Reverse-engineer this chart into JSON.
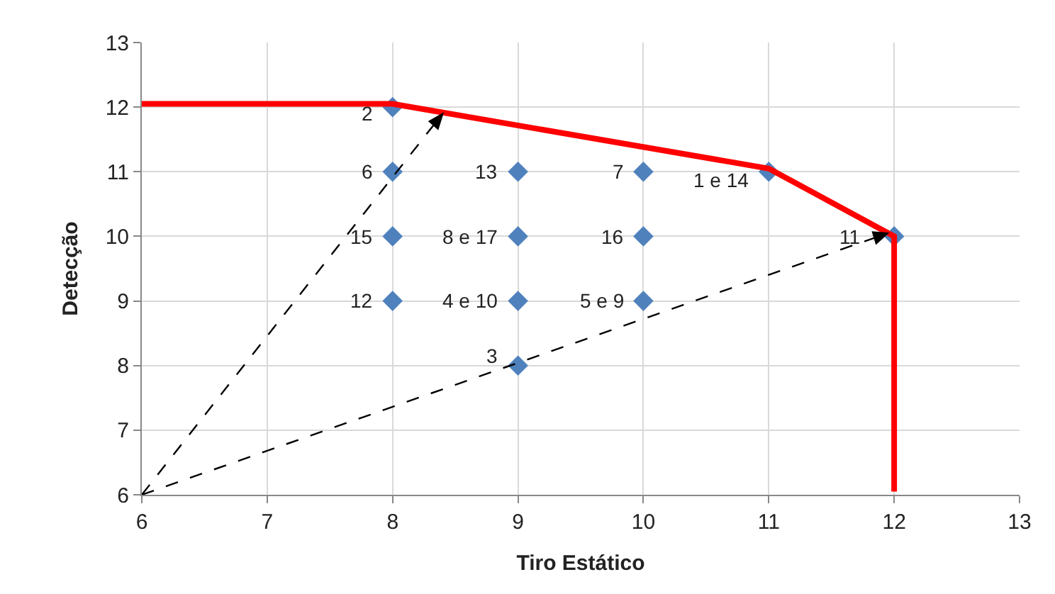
{
  "chart_data": {
    "type": "scatter",
    "xlabel": "Tiro Estático",
    "ylabel": "Detecção",
    "xlim": [
      6,
      13
    ],
    "xticks": [
      6,
      7,
      8,
      9,
      10,
      11,
      12,
      13
    ],
    "ylim": [
      6,
      13
    ],
    "yticks": [
      6,
      7,
      8,
      9,
      10,
      11,
      12,
      13
    ],
    "grid": true,
    "series": [
      {
        "marker": "diamond",
        "color": "#4f81bd",
        "x": [
          8,
          8,
          9,
          10,
          11,
          12,
          8,
          9,
          10,
          8,
          9,
          10,
          9
        ],
        "values": [
          12,
          11,
          11,
          11,
          11,
          10,
          10,
          10,
          10,
          9,
          9,
          9,
          8
        ]
      },
      {
        "type": "line",
        "marker": "none",
        "line_style": "solid",
        "color": "#ff0000",
        "x": [
          6,
          8,
          11,
          12,
          12
        ],
        "values": [
          12.05,
          12.05,
          11.05,
          10,
          6.05
        ]
      }
    ],
    "annotations": [
      {
        "text": "2",
        "x": 8,
        "y": 12
      },
      {
        "text": "6",
        "x": 8,
        "y": 11
      },
      {
        "text": "13",
        "x": 9,
        "y": 11
      },
      {
        "text": "7",
        "x": 10,
        "y": 11
      },
      {
        "text": "1 e 14",
        "x": 11,
        "y": 11
      },
      {
        "text": "11",
        "x": 12,
        "y": 10
      },
      {
        "text": "15",
        "x": 8,
        "y": 10
      },
      {
        "text": "8 e 17",
        "x": 9,
        "y": 10
      },
      {
        "text": "16",
        "x": 10,
        "y": 10
      },
      {
        "text": "12",
        "x": 8,
        "y": 9
      },
      {
        "text": "4 e 10",
        "x": 9,
        "y": 9
      },
      {
        "text": "5 e 9",
        "x": 10,
        "y": 9
      },
      {
        "text": "3",
        "x": 9,
        "y": 8
      }
    ]
  }
}
